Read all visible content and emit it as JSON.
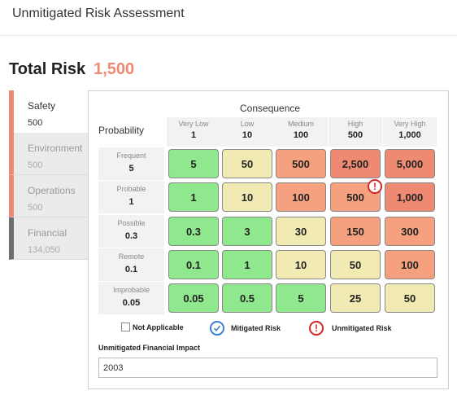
{
  "page": {
    "title": "Unmitigated Risk Assessment"
  },
  "total_risk": {
    "label": "Total Risk",
    "value": "1,500"
  },
  "categories": [
    {
      "name": "Safety",
      "value": "500"
    },
    {
      "name": "Environment",
      "value": "500"
    },
    {
      "name": "Operations",
      "value": "500"
    },
    {
      "name": "Financial",
      "value": "134,050"
    }
  ],
  "matrix": {
    "consequence_label": "Consequence",
    "probability_label": "Probability",
    "columns": [
      {
        "name": "Very Low",
        "value": "1"
      },
      {
        "name": "Low",
        "value": "10"
      },
      {
        "name": "Medium",
        "value": "100"
      },
      {
        "name": "High",
        "value": "500"
      },
      {
        "name": "Very High",
        "value": "1,000"
      }
    ],
    "rows": [
      {
        "name": "Frequent",
        "value": "5",
        "cells": [
          "5",
          "50",
          "500",
          "2,500",
          "5,000"
        ]
      },
      {
        "name": "Probable",
        "value": "1",
        "cells": [
          "1",
          "10",
          "100",
          "500",
          "1,000"
        ]
      },
      {
        "name": "Possible",
        "value": "0.3",
        "cells": [
          "0.3",
          "3",
          "30",
          "150",
          "300"
        ]
      },
      {
        "name": "Remote",
        "value": "0.1",
        "cells": [
          "0.1",
          "1",
          "10",
          "50",
          "100"
        ]
      },
      {
        "name": "Improbable",
        "value": "0.05",
        "cells": [
          "0.05",
          "0.5",
          "5",
          "25",
          "50"
        ]
      }
    ],
    "selected_cell_icon": "exclamation-circle-icon"
  },
  "colors": {
    "green": "#8fe88d",
    "yellow": "#f1eab3",
    "orange": "#f5a07e",
    "red": "#ef8a72",
    "alert": "#d62424",
    "check": "#3a7fd1"
  },
  "legend": {
    "not_applicable": "Not Applicable",
    "mitigated": "Mitigated Risk",
    "unmitigated": "Unmitigated Risk"
  },
  "financial_impact": {
    "label": "Unmitigated Financial Impact",
    "value": "2003"
  }
}
